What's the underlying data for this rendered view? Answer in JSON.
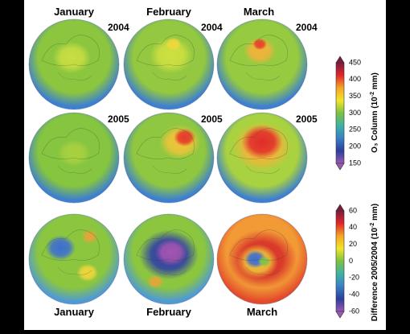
{
  "months_top": [
    "January",
    "February",
    "March"
  ],
  "months_bottom": [
    "January",
    "February",
    "March"
  ],
  "years": [
    "2004",
    "2005"
  ],
  "colorbar_top": {
    "title": "O₃ Column (10",
    "superscript": "-2",
    "title_end": " mm)",
    "ticks": [
      "450",
      "400",
      "350",
      "300",
      "250",
      "200",
      "150"
    ],
    "colors": [
      "#7a1c3c",
      "#e3262a",
      "#f5a623",
      "#f2e52b",
      "#7cc242",
      "#3fb3a6",
      "#3b7fc4",
      "#2a3f9a",
      "#9b59b6"
    ]
  },
  "colorbar_bottom": {
    "title": "Difference 2005/2004 (10",
    "superscript": "-2",
    "title_end": " mm)",
    "ticks": [
      "60",
      "40",
      "20",
      "0",
      "-20",
      "-40",
      "-60"
    ],
    "colors": [
      "#7a1c3c",
      "#e3262a",
      "#f5a623",
      "#f2e52b",
      "#7cc242",
      "#3fb3a6",
      "#3b7fc4",
      "#2a3f9a",
      "#9b59b6"
    ]
  },
  "globes": [
    {
      "id": "jan-2004",
      "month": "January",
      "year": "2004",
      "base": "#8cc63f",
      "rim": "#3d7fd0",
      "blobs": [
        {
          "color": "#c9de42",
          "size": 0.35,
          "dx": -0.05,
          "dy": -0.15
        }
      ]
    },
    {
      "id": "feb-2004",
      "month": "February",
      "year": "2004",
      "base": "#93c840",
      "rim": "#3d7fd0",
      "blobs": [
        {
          "color": "#cfe041",
          "size": 0.4,
          "dx": 0.05,
          "dy": -0.2
        },
        {
          "color": "#f0d83c",
          "size": 0.15,
          "dx": 0.1,
          "dy": -0.45
        }
      ]
    },
    {
      "id": "mar-2004",
      "month": "March",
      "year": "2004",
      "base": "#96ca40",
      "rim": "#3d7fd0",
      "blobs": [
        {
          "color": "#f1b33a",
          "size": 0.3,
          "dx": -0.05,
          "dy": -0.3
        },
        {
          "color": "#e7412b",
          "size": 0.13,
          "dx": -0.05,
          "dy": -0.45
        }
      ]
    },
    {
      "id": "jan-2005",
      "month": "January",
      "year": "2005",
      "base": "#86c53f",
      "rim": "#3d7fd0",
      "blobs": [
        {
          "color": "#a8d140",
          "size": 0.3,
          "dx": 0.0,
          "dy": -0.1
        }
      ]
    },
    {
      "id": "feb-2005",
      "month": "February",
      "year": "2005",
      "base": "#8fc840",
      "rim": "#3d7fd0",
      "blobs": [
        {
          "color": "#f0c43a",
          "size": 0.38,
          "dx": 0.25,
          "dy": -0.35
        },
        {
          "color": "#e53a2b",
          "size": 0.2,
          "dx": 0.35,
          "dy": -0.45
        }
      ]
    },
    {
      "id": "mar-2005",
      "month": "March",
      "year": "2005",
      "base": "#a9d240",
      "rim": "#3d7fd0",
      "blobs": [
        {
          "color": "#f2b43a",
          "size": 0.55,
          "dx": 0.0,
          "dy": -0.25
        },
        {
          "color": "#e02c2a",
          "size": 0.38,
          "dx": 0.0,
          "dy": -0.35
        }
      ]
    },
    {
      "id": "jan-diff",
      "month": "January",
      "year": "",
      "base": "#8cc63f",
      "rim": "#4f9ad4",
      "blobs": [
        {
          "color": "#3d6ed1",
          "size": 0.28,
          "dx": -0.3,
          "dy": -0.25
        },
        {
          "color": "#e3a53a",
          "size": 0.15,
          "dx": 0.35,
          "dy": -0.5
        },
        {
          "color": "#f0d63c",
          "size": 0.2,
          "dx": 0.3,
          "dy": 0.3
        }
      ]
    },
    {
      "id": "feb-diff",
      "month": "February",
      "year": "",
      "base": "#8cc63f",
      "rim": "#4f9ad4",
      "blobs": [
        {
          "color": "#2d3aa8",
          "size": 0.55,
          "dx": 0.0,
          "dy": -0.1
        },
        {
          "color": "#a455b0",
          "size": 0.3,
          "dx": 0.05,
          "dy": -0.15
        },
        {
          "color": "#e3a53a",
          "size": 0.15,
          "dx": -0.3,
          "dy": 0.5
        }
      ]
    },
    {
      "id": "mar-diff",
      "month": "March",
      "year": "",
      "base": "#f29a36",
      "rim": "#e34a2b",
      "blobs": [
        {
          "color": "#d62c2a",
          "size": 0.65,
          "dx": 0.0,
          "dy": 0.0
        },
        {
          "color": "#f0c43a",
          "size": 0.38,
          "dx": -0.1,
          "dy": 0.05
        },
        {
          "color": "#3d6ed1",
          "size": 0.2,
          "dx": -0.15,
          "dy": 0.0
        },
        {
          "color": "#82c44a",
          "size": 0.12,
          "dx": 0.05,
          "dy": 0.05
        }
      ]
    }
  ]
}
